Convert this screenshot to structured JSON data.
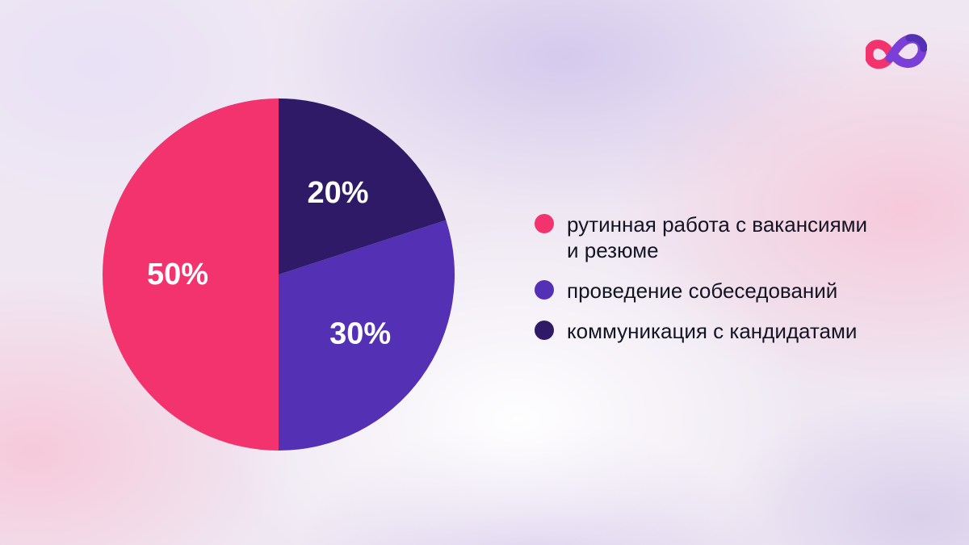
{
  "chart_data": {
    "type": "pie",
    "title": "",
    "slices": [
      {
        "label": "рутинная работа с вакансиями и резюме",
        "value": 50,
        "display": "50%",
        "color": "#f2336e"
      },
      {
        "label": "проведение собеседований",
        "value": 30,
        "display": "30%",
        "color": "#5430b4"
      },
      {
        "label": "коммуникация с кандидатами",
        "value": 20,
        "display": "20%",
        "color": "#2e1a66"
      }
    ],
    "legend_position": "right"
  },
  "legend": {
    "items": [
      {
        "line1": "рутинная работа с вакансиями",
        "line2": "и резюме",
        "color": "#f2336e"
      },
      {
        "line1": "проведение собеседований",
        "line2": "",
        "color": "#5430b4"
      },
      {
        "line1": "коммуникация с кандидатами",
        "line2": "",
        "color": "#2e1a66"
      }
    ]
  },
  "logo": {
    "icon": "infinity-loop-logo-icon",
    "colors": [
      "#f2336e",
      "#7a3fd6",
      "#5430b4"
    ]
  }
}
